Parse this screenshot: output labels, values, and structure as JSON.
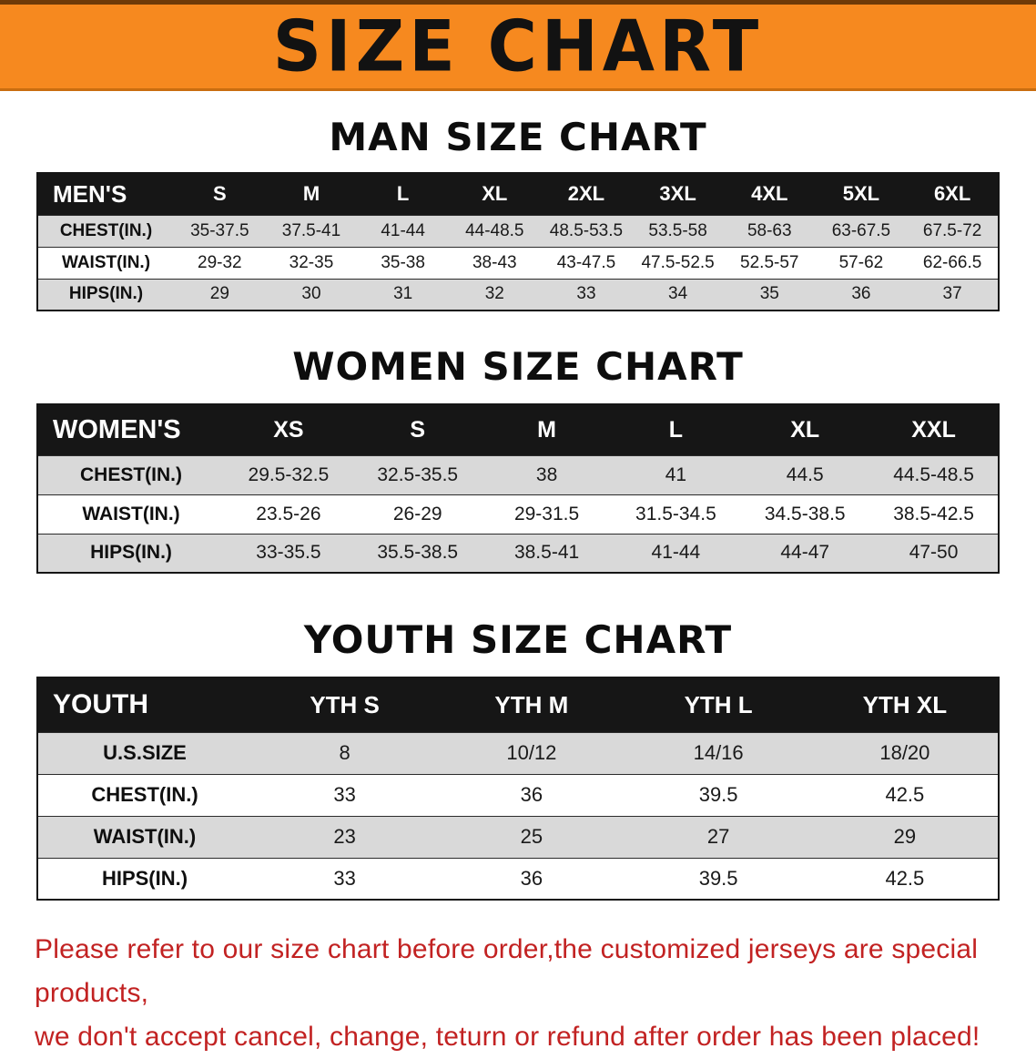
{
  "banner": {
    "title": "SIZE CHART",
    "background_color": "#f6891f",
    "text_color": "#121212"
  },
  "tables": {
    "men": {
      "heading": "MAN SIZE CHART",
      "header": [
        "MEN'S",
        "S",
        "M",
        "L",
        "XL",
        "2XL",
        "3XL",
        "4XL",
        "5XL",
        "6XL"
      ],
      "rows": [
        [
          "CHEST(IN.)",
          "35-37.5",
          "37.5-41",
          "41-44",
          "44-48.5",
          "48.5-53.5",
          "53.5-58",
          "58-63",
          "63-67.5",
          "67.5-72"
        ],
        [
          "WAIST(IN.)",
          "29-32",
          "32-35",
          "35-38",
          "38-43",
          "43-47.5",
          "47.5-52.5",
          "52.5-57",
          "57-62",
          "62-66.5"
        ],
        [
          "HIPS(IN.)",
          "29",
          "30",
          "31",
          "32",
          "33",
          "34",
          "35",
          "36",
          "37"
        ]
      ]
    },
    "women": {
      "heading": "WOMEN SIZE CHART",
      "header": [
        "WOMEN'S",
        "XS",
        "S",
        "M",
        "L",
        "XL",
        "XXL"
      ],
      "rows": [
        [
          "CHEST(IN.)",
          "29.5-32.5",
          "32.5-35.5",
          "38",
          "41",
          "44.5",
          "44.5-48.5"
        ],
        [
          "WAIST(IN.)",
          "23.5-26",
          "26-29",
          "29-31.5",
          "31.5-34.5",
          "34.5-38.5",
          "38.5-42.5"
        ],
        [
          "HIPS(IN.)",
          "33-35.5",
          "35.5-38.5",
          "38.5-41",
          "41-44",
          "44-47",
          "47-50"
        ]
      ]
    },
    "youth": {
      "heading": "YOUTH SIZE CHART",
      "header": [
        "YOUTH",
        "YTH S",
        "YTH M",
        "YTH L",
        "YTH XL"
      ],
      "rows": [
        [
          "U.S.SIZE",
          "8",
          "10/12",
          "14/16",
          "18/20"
        ],
        [
          "CHEST(IN.)",
          "33",
          "36",
          "39.5",
          "42.5"
        ],
        [
          "WAIST(IN.)",
          "23",
          "25",
          "27",
          "29"
        ],
        [
          "HIPS(IN.)",
          "33",
          "36",
          "39.5",
          "42.5"
        ]
      ]
    }
  },
  "disclaimer": {
    "line1": "Please refer to our size chart before order,the customized jerseys are special products,",
    "line2": "we don't accept cancel, change, teturn or refund after order has been placed!",
    "text_color": "#c22222"
  }
}
